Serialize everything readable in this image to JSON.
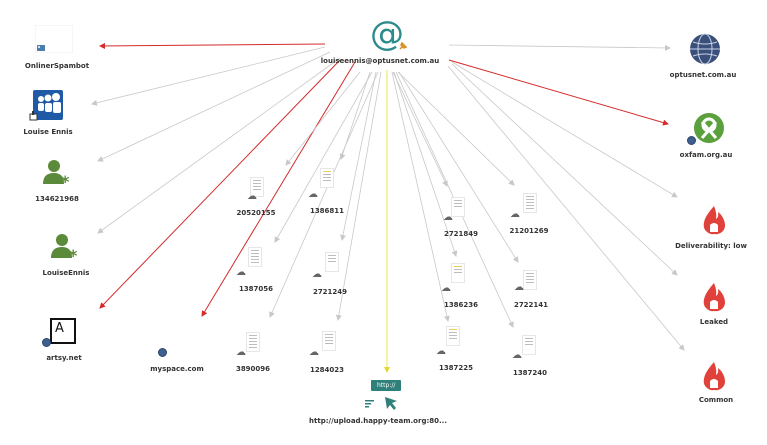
{
  "center": {
    "label": "louiseennis@optusnet.com.au",
    "icon": "at-sign-icon"
  },
  "nodes": {
    "onliner": {
      "label": "OnlinerSpambot"
    },
    "myspace_user": {
      "label": "Louise Ennis"
    },
    "user_134621968": {
      "label": "134621968"
    },
    "user_louiseennis": {
      "label": "LouiseEnnis"
    },
    "artsy": {
      "label": "artsy.net",
      "logo_text": "A"
    },
    "myspace_site": {
      "label": "myspace.com"
    },
    "optusnet": {
      "label": "optusnet.com.au"
    },
    "oxfam": {
      "label": "oxfam.org.au"
    },
    "deliverability": {
      "label": "Deliverability: low"
    },
    "leaked": {
      "label": "Leaked"
    },
    "common": {
      "label": "Common"
    },
    "url": {
      "label": "http://upload.happy-team.org:80...",
      "badge": "http://"
    }
  },
  "docs": [
    {
      "id": "20520155",
      "label": "20520155"
    },
    {
      "id": "1386811",
      "label": "1386811"
    },
    {
      "id": "1387056",
      "label": "1387056"
    },
    {
      "id": "2721249",
      "label": "2721249"
    },
    {
      "id": "3890096",
      "label": "3890096"
    },
    {
      "id": "1284023",
      "label": "1284023"
    },
    {
      "id": "2721849",
      "label": "2721849"
    },
    {
      "id": "21201269",
      "label": "21201269"
    },
    {
      "id": "1386236",
      "label": "1386236"
    },
    {
      "id": "2722141",
      "label": "2722141"
    },
    {
      "id": "1387225",
      "label": "1387225"
    },
    {
      "id": "1387240",
      "label": "1387240"
    }
  ],
  "colors": {
    "edge_default": "#c8c8c8",
    "edge_red": "#d42a2a",
    "edge_yellow": "#f2e64a",
    "at_sign": "#2e8b8b",
    "person_green": "#5b8a3a",
    "myspace_blue": "#1f5aa6",
    "globe_blue": "#3f5f8f",
    "oxfam_green": "#5aa03c",
    "flame_red": "#e0413a",
    "url_teal": "#2f7f7a"
  }
}
